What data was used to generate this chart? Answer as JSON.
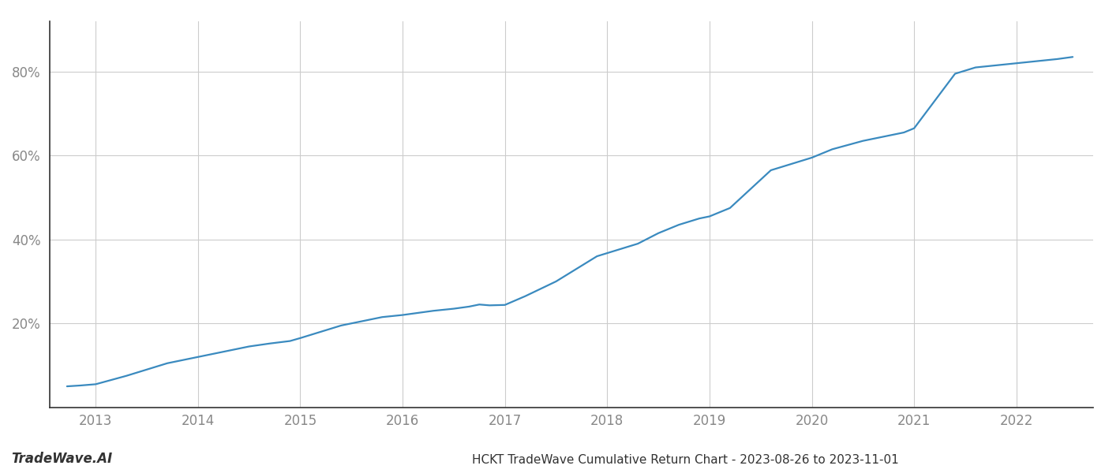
{
  "title": "HCKT TradeWave Cumulative Return Chart - 2023-08-26 to 2023-11-01",
  "watermark": "TradeWave.AI",
  "line_color": "#3a8abf",
  "background_color": "#ffffff",
  "grid_color": "#cccccc",
  "x_values": [
    2012.72,
    2012.85,
    2013.0,
    2013.15,
    2013.3,
    2013.5,
    2013.7,
    2013.9,
    2014.1,
    2014.3,
    2014.5,
    2014.7,
    2014.9,
    2015.0,
    2015.2,
    2015.4,
    2015.6,
    2015.8,
    2016.0,
    2016.15,
    2016.3,
    2016.5,
    2016.65,
    2016.75,
    2016.85,
    2017.0,
    2017.2,
    2017.5,
    2017.7,
    2017.9,
    2018.1,
    2018.3,
    2018.5,
    2018.7,
    2018.9,
    2019.0,
    2019.2,
    2019.4,
    2019.6,
    2019.8,
    2020.0,
    2020.2,
    2020.5,
    2020.7,
    2020.9,
    2021.0,
    2021.2,
    2021.4,
    2021.6,
    2021.8,
    2022.0,
    2022.2,
    2022.4,
    2022.55
  ],
  "y_values": [
    5.0,
    5.2,
    5.5,
    6.5,
    7.5,
    9.0,
    10.5,
    11.5,
    12.5,
    13.5,
    14.5,
    15.2,
    15.8,
    16.5,
    18.0,
    19.5,
    20.5,
    21.5,
    22.0,
    22.5,
    23.0,
    23.5,
    24.0,
    24.5,
    24.3,
    24.4,
    26.5,
    30.0,
    33.0,
    36.0,
    37.5,
    39.0,
    41.5,
    43.5,
    45.0,
    45.5,
    47.5,
    52.0,
    56.5,
    58.0,
    59.5,
    61.5,
    63.5,
    64.5,
    65.5,
    66.5,
    73.0,
    79.5,
    81.0,
    81.5,
    82.0,
    82.5,
    83.0,
    83.5
  ],
  "xlim": [
    2012.55,
    2022.75
  ],
  "ylim": [
    0,
    92
  ],
  "yticks": [
    20,
    40,
    60,
    80
  ],
  "xticks": [
    2013,
    2014,
    2015,
    2016,
    2017,
    2018,
    2019,
    2020,
    2021,
    2022
  ],
  "xtick_labels": [
    "2013",
    "2014",
    "2015",
    "2016",
    "2017",
    "2018",
    "2019",
    "2020",
    "2021",
    "2022"
  ],
  "line_width": 1.6,
  "title_fontsize": 11,
  "tick_fontsize": 12,
  "watermark_fontsize": 12
}
